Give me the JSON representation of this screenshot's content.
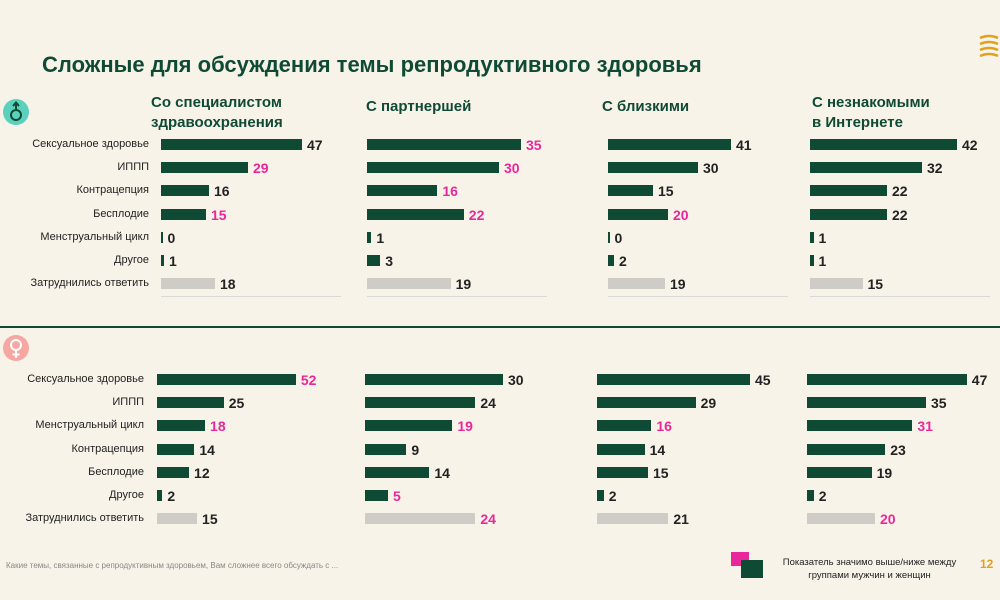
{
  "title": "Сложные для обсуждения темы репродуктивного здоровья",
  "colors": {
    "bar": "#0f4a35",
    "neutral": "#cfcbc6",
    "highlight": "#e8289a",
    "text": "#0f4a35"
  },
  "chart_data": {
    "type": "bar",
    "orientation": "horizontal",
    "columns": [
      {
        "header_lines": [
          "Со специалистом",
          "здравоохранения"
        ]
      },
      {
        "header_lines": [
          "С партнершей"
        ]
      },
      {
        "header_lines": [
          "С близкими"
        ]
      },
      {
        "header_lines": [
          "С незнакомыми",
          "в Интернете"
        ]
      }
    ],
    "panels": [
      {
        "symbol": "male-icon",
        "categories": [
          "Сексуальное здоровье",
          "ИППП",
          "Контрацепция",
          "Бесплодие",
          "Менструальный цикл",
          "Другое",
          "Затруднились ответить"
        ],
        "series": [
          {
            "values": [
              47,
              29,
              16,
              15,
              0,
              1,
              18
            ],
            "highlight": [
              false,
              true,
              false,
              true,
              false,
              false,
              false
            ]
          },
          {
            "values": [
              35,
              30,
              16,
              22,
              1,
              3,
              19
            ],
            "highlight": [
              true,
              true,
              true,
              true,
              false,
              false,
              false
            ]
          },
          {
            "values": [
              41,
              30,
              15,
              20,
              0,
              2,
              19
            ],
            "highlight": [
              false,
              false,
              false,
              true,
              false,
              false,
              false
            ]
          },
          {
            "values": [
              42,
              32,
              22,
              22,
              1,
              1,
              15
            ],
            "highlight": [
              false,
              false,
              false,
              false,
              false,
              false,
              false
            ]
          }
        ]
      },
      {
        "symbol": "female-icon",
        "categories": [
          "Сексуальное здоровье",
          "ИППП",
          "Менструальный цикл",
          "Контрацепция",
          "Бесплодие",
          "Другое",
          "Затруднились ответить"
        ],
        "series": [
          {
            "values": [
              52,
              25,
              18,
              14,
              12,
              2,
              15
            ],
            "highlight": [
              true,
              false,
              true,
              false,
              false,
              false,
              false
            ]
          },
          {
            "values": [
              30,
              24,
              19,
              9,
              14,
              5,
              24
            ],
            "highlight": [
              false,
              false,
              true,
              false,
              false,
              true,
              true
            ]
          },
          {
            "values": [
              45,
              29,
              16,
              14,
              15,
              2,
              21
            ],
            "highlight": [
              false,
              false,
              true,
              false,
              false,
              false,
              false
            ]
          },
          {
            "values": [
              47,
              35,
              31,
              23,
              19,
              2,
              20
            ],
            "highlight": [
              false,
              false,
              true,
              false,
              false,
              false,
              true
            ]
          }
        ]
      }
    ],
    "neutral_category": "Затруднились ответить"
  },
  "footnote": "Какие темы, связанные с репродуктивным здоровьем, Вам сложнее всего обсуждать с ...",
  "legend": {
    "text": "Показатель значимо выше/ниже между группами мужчин и женщин"
  },
  "page_number": "12"
}
